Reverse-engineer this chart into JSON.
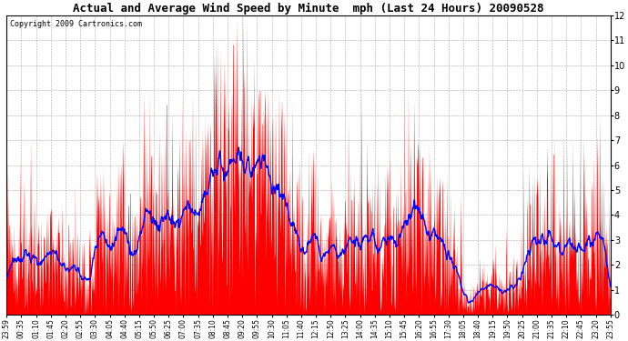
{
  "title": "Actual and Average Wind Speed by Minute  mph (Last 24 Hours) 20090528",
  "copyright": "Copyright 2009 Cartronics.com",
  "bar_color": "#ff0000",
  "line_color": "#0000ff",
  "bg_color": "#ffffff",
  "grid_color": "#aaaaaa",
  "ylim": [
    0.0,
    12.0
  ],
  "yticks": [
    0.0,
    1.0,
    2.0,
    3.0,
    4.0,
    5.0,
    6.0,
    7.0,
    8.0,
    9.0,
    10.0,
    11.0,
    12.0
  ],
  "time_labels": [
    "23:59",
    "00:35",
    "01:10",
    "01:45",
    "02:20",
    "02:55",
    "03:30",
    "04:05",
    "04:40",
    "05:15",
    "05:50",
    "06:25",
    "07:00",
    "07:35",
    "08:10",
    "08:45",
    "09:20",
    "09:55",
    "10:30",
    "11:05",
    "11:40",
    "12:15",
    "12:50",
    "13:25",
    "14:00",
    "14:35",
    "15:10",
    "15:45",
    "16:20",
    "16:55",
    "17:30",
    "18:05",
    "18:40",
    "19:15",
    "19:50",
    "20:25",
    "21:00",
    "21:35",
    "22:10",
    "22:45",
    "23:20",
    "23:55"
  ],
  "n_points": 1440,
  "title_fontsize": 9,
  "copyright_fontsize": 6,
  "ytick_fontsize": 7,
  "xtick_fontsize": 5.5
}
